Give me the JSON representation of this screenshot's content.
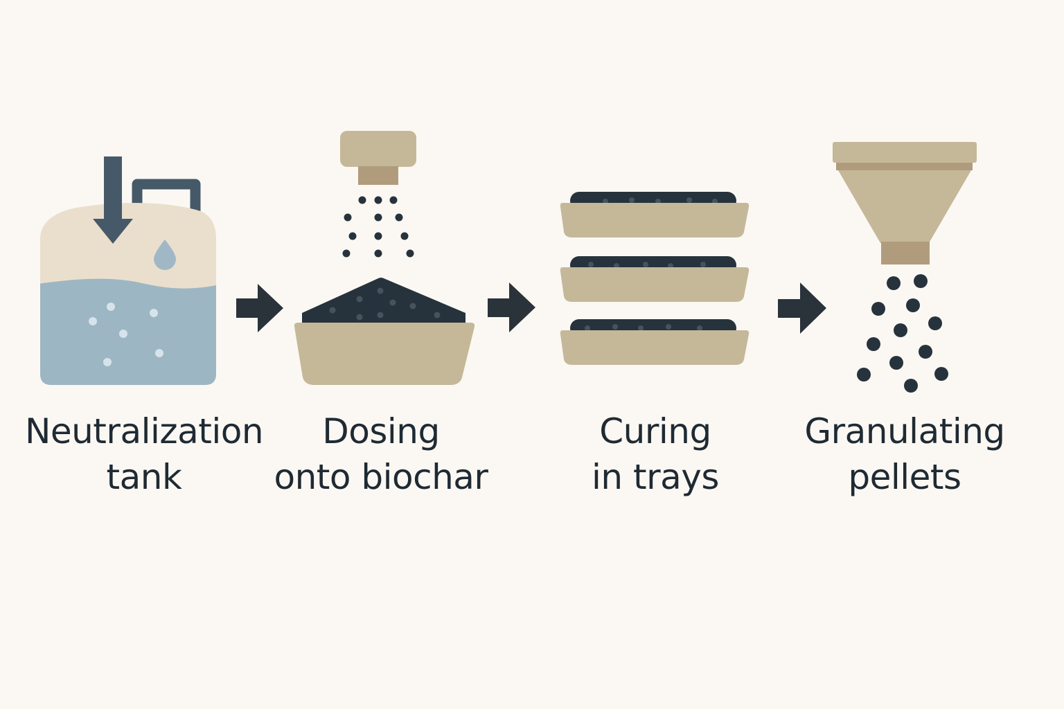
{
  "steps": [
    {
      "line1": "Neutralization",
      "line2": "tank",
      "icon": "tank-icon"
    },
    {
      "line1": "Dosing",
      "line2": "onto biochar",
      "icon": "dosing-icon"
    },
    {
      "line1": "Curing",
      "line2": "in trays",
      "icon": "trays-icon"
    },
    {
      "line1": "Granulating",
      "line2": "pellets",
      "icon": "funnel-icon"
    }
  ],
  "colors": {
    "background": "#fbf8f3",
    "ink": "#1f2a33",
    "slate": "#465968",
    "tan": "#c5b899",
    "tan_dark": "#b09c7d",
    "cream": "#eadfcd",
    "water": "#9db6c3",
    "water_drop": "#a0b8c6",
    "biochar": "#27333c"
  }
}
